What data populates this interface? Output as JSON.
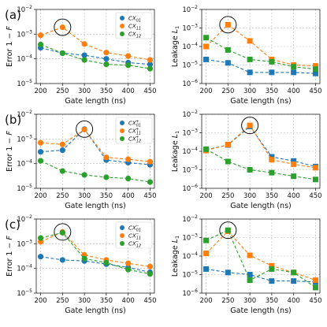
{
  "colors": {
    "cx01": "#1f77b4",
    "cx11": "#ff7f0e",
    "cx12": "#2ca02c"
  },
  "chart_data": [
    {
      "type": "scatter",
      "panel": "(a)",
      "metric": "error",
      "xlabel": "Gate length (ns)",
      "ylabel": "Error 1 − F",
      "x": [
        200,
        250,
        300,
        350,
        400,
        450
      ],
      "xlim": [
        190,
        460
      ],
      "ylim": [
        1e-05,
        0.01
      ],
      "yscale": "log",
      "grid": true,
      "legend": "top-right",
      "marker": "circle",
      "highlight_x": 250,
      "series": [
        {
          "name": "CX01",
          "color": "#1f77b4",
          "values": [
            0.00028,
            0.00017,
            0.00014,
            0.0001,
            7e-05,
            6e-05
          ]
        },
        {
          "name": "CX11",
          "color": "#ff7f0e",
          "values": [
            0.0009,
            0.0019,
            0.0004,
            0.00018,
            0.00013,
            9e-05
          ]
        },
        {
          "name": "CX12",
          "color": "#2ca02c",
          "values": [
            0.00038,
            0.00017,
            9e-05,
            6e-05,
            5.5e-05,
            4e-05
          ]
        }
      ]
    },
    {
      "type": "scatter",
      "panel": "",
      "metric": "leakage",
      "xlabel": "Gate length (ns)",
      "ylabel": "Leakage L1",
      "x": [
        200,
        250,
        300,
        350,
        400,
        450
      ],
      "xlim": [
        190,
        460
      ],
      "ylim": [
        1e-06,
        0.01
      ],
      "yscale": "log",
      "grid": true,
      "marker": "square",
      "highlight_x": 250,
      "series": [
        {
          "name": "CX01",
          "color": "#1f77b4",
          "values": [
            2e-05,
            1.3e-05,
            4e-06,
            4e-06,
            4e-06,
            3.5e-06
          ]
        },
        {
          "name": "CX11",
          "color": "#ff7f0e",
          "values": [
            0.0001,
            0.0015,
            0.0002,
            2e-05,
            1e-05,
            9e-06
          ]
        },
        {
          "name": "CX12",
          "color": "#2ca02c",
          "values": [
            0.0003,
            6.5e-05,
            2e-05,
            1.5e-05,
            8e-06,
            6e-06
          ]
        }
      ]
    },
    {
      "type": "scatter",
      "panel": "(b)",
      "metric": "error",
      "xlabel": "Gate length (ns)",
      "ylabel": "Error 1 − F",
      "x": [
        200,
        250,
        300,
        350,
        400,
        450
      ],
      "xlim": [
        190,
        460
      ],
      "ylim": [
        1e-05,
        0.01
      ],
      "yscale": "log",
      "grid": true,
      "legend": "top-right",
      "marker": "circle",
      "highlight_x": 300,
      "series": [
        {
          "name": "CX01",
          "color": "#1f77b4",
          "values": [
            0.0003,
            0.00035,
            0.0025,
            0.00014,
            0.00011,
            9e-05
          ]
        },
        {
          "name": "CX11",
          "color": "#ff7f0e",
          "values": [
            0.0007,
            0.0006,
            0.0024,
            0.00018,
            0.00015,
            0.00012
          ]
        },
        {
          "name": "CX12",
          "color": "#2ca02c",
          "values": [
            0.00013,
            5e-05,
            3.5e-05,
            2.8e-05,
            2.5e-05,
            1.8e-05
          ]
        }
      ]
    },
    {
      "type": "scatter",
      "panel": "",
      "metric": "leakage",
      "xlabel": "Gate length (ns)",
      "ylabel": "Leakage L1",
      "x": [
        200,
        250,
        300,
        350,
        400,
        450
      ],
      "xlim": [
        190,
        460
      ],
      "ylim": [
        1e-06,
        0.01
      ],
      "yscale": "log",
      "grid": true,
      "marker": "square",
      "highlight_x": 300,
      "series": [
        {
          "name": "CX01",
          "color": "#1f77b4",
          "values": [
            0.00012,
            0.00022,
            0.0022,
            5e-05,
            3e-05,
            1.5e-05
          ]
        },
        {
          "name": "CX11",
          "color": "#ff7f0e",
          "values": [
            0.00011,
            0.00023,
            0.0025,
            3.5e-05,
            2e-05,
            1.3e-05
          ]
        },
        {
          "name": "CX12",
          "color": "#2ca02c",
          "values": [
            0.00013,
            2.8e-05,
            1e-05,
            7e-06,
            4.5e-06,
            3e-06
          ]
        }
      ]
    },
    {
      "type": "scatter",
      "panel": "(c)",
      "metric": "error",
      "xlabel": "Gate length (ns)",
      "ylabel": "Error 1 − F",
      "x": [
        200,
        250,
        300,
        350,
        400,
        450
      ],
      "xlim": [
        190,
        460
      ],
      "ylim": [
        1e-05,
        0.01
      ],
      "yscale": "log",
      "grid": true,
      "legend": "top-right",
      "marker": "circle",
      "highlight_x": 250,
      "series": [
        {
          "name": "CX01",
          "color": "#1f77b4",
          "values": [
            0.0003,
            0.00022,
            0.0002,
            0.00015,
            0.00011,
            7e-05
          ]
        },
        {
          "name": "CX11",
          "color": "#ff7f0e",
          "values": [
            0.0012,
            0.003,
            0.00035,
            0.00022,
            0.00016,
            0.00012
          ]
        },
        {
          "name": "CX12",
          "color": "#2ca02c",
          "values": [
            0.0017,
            0.0028,
            0.00025,
            0.00017,
            9e-05,
            6e-05
          ]
        }
      ]
    },
    {
      "type": "scatter",
      "panel": "",
      "metric": "leakage",
      "xlabel": "Gate length (ns)",
      "ylabel": "Leakage L1",
      "x": [
        200,
        250,
        300,
        350,
        400,
        450
      ],
      "xlim": [
        190,
        460
      ],
      "ylim": [
        1e-06,
        0.01
      ],
      "yscale": "log",
      "grid": true,
      "marker": "square",
      "highlight_x": 250,
      "series": [
        {
          "name": "CX01",
          "color": "#1f77b4",
          "values": [
            2e-05,
            1.3e-05,
            1e-05,
            4.5e-06,
            4.5e-06,
            4e-06
          ]
        },
        {
          "name": "CX11",
          "color": "#ff7f0e",
          "values": [
            0.00014,
            0.0022,
            0.00011,
            3e-05,
            1.3e-05,
            5e-06
          ]
        },
        {
          "name": "CX12",
          "color": "#2ca02c",
          "values": [
            0.0007,
            0.0025,
            5e-06,
            2e-05,
            1.3e-05,
            2e-06
          ]
        }
      ]
    }
  ]
}
